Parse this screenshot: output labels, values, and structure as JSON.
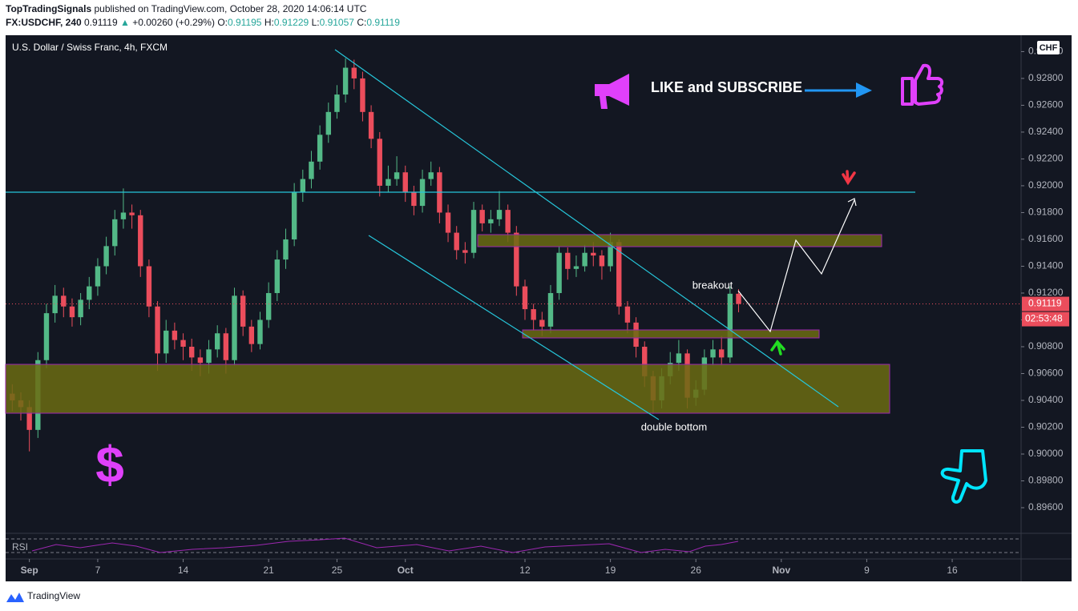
{
  "header": {
    "publisher": "TopTradingSignals",
    "published": "published on TradingView.com, October 28, 2020 14:06:14 UTC",
    "symbol": "FX:USDCHF, 240",
    "price": "0.91119",
    "change": "+0.00260 (+0.29%)",
    "ohlc": [
      {
        "label": "O:",
        "value": "0.91195"
      },
      {
        "label": "H:",
        "value": "0.91229"
      },
      {
        "label": "L:",
        "value": "0.91057"
      },
      {
        "label": "C:",
        "value": "0.91119"
      }
    ]
  },
  "chart_data": {
    "type": "candlestick",
    "title": "U.S. Dollar / Swiss Franc, 4h, FXCM",
    "currency": "CHF",
    "categories": [
      null,
      null,
      "Sep",
      null,
      null,
      null,
      null,
      null,
      null,
      null,
      "7",
      null,
      null,
      null,
      null,
      null,
      null,
      null,
      null,
      null,
      "14",
      null,
      null,
      null,
      null,
      null,
      null,
      null,
      null,
      null,
      "21",
      null,
      null,
      null,
      null,
      null,
      null,
      null,
      "25",
      null,
      null,
      null,
      null,
      null,
      null,
      null,
      "Oct",
      null,
      null,
      null,
      null,
      null,
      null,
      null,
      null,
      null,
      null,
      null,
      null,
      null,
      "12",
      null,
      null,
      null,
      null,
      null,
      null,
      null,
      null,
      null,
      "19",
      null,
      null,
      null,
      null,
      null,
      null,
      null,
      null,
      null,
      "26",
      null,
      null,
      null,
      null,
      null,
      null,
      null,
      null,
      null,
      "Nov",
      null,
      null,
      null,
      null,
      null,
      null,
      null,
      null,
      null,
      "9",
      null,
      null,
      null,
      null,
      null,
      null,
      null,
      null,
      null,
      "16",
      null,
      null,
      null,
      null,
      null,
      null,
      null
    ],
    "open": [
      0.9045,
      0.904,
      0.9035,
      0.9018,
      0.907,
      0.9105,
      0.9118,
      0.911,
      0.9102,
      0.9115,
      0.9125,
      0.914,
      0.9155,
      0.9175,
      0.918,
      0.9178,
      0.914,
      0.911,
      0.9075,
      0.9092,
      0.9085,
      0.908,
      0.9072,
      0.9068,
      0.9078,
      0.909,
      0.907,
      0.9118,
      0.9095,
      0.9082,
      0.91,
      0.912,
      0.9145,
      0.916,
      0.9195,
      0.9205,
      0.9218,
      0.9238,
      0.9255,
      0.9268,
      0.9288,
      0.928,
      0.9255,
      0.9235,
      0.92,
      0.9205,
      0.921,
      0.9195,
      0.9185,
      0.9205,
      0.921,
      0.918,
      0.9165,
      0.9152,
      0.915,
      0.9182,
      0.9172,
      0.9175,
      0.9182,
      0.9165,
      0.9125,
      0.9108,
      0.91,
      0.9095,
      0.912,
      0.915,
      0.9138,
      0.914,
      0.915,
      0.9148,
      0.914,
      0.9158,
      0.911,
      0.9098,
      0.908,
      0.9058,
      0.904,
      0.9058,
      0.9068,
      0.9075,
      0.9042,
      0.9048,
      0.9072,
      0.9078,
      0.9072,
      0.91195,
      null,
      null,
      null,
      null,
      null,
      null,
      null,
      null,
      null,
      null,
      null,
      null,
      null,
      null,
      null,
      null,
      null,
      null,
      null,
      null,
      null,
      null,
      null,
      null,
      null,
      null,
      null,
      null,
      null,
      null,
      null,
      null
    ],
    "high": [
      0.9052,
      0.9046,
      0.904,
      0.9076,
      0.9112,
      0.9126,
      0.9124,
      0.9116,
      0.912,
      0.9132,
      0.9146,
      0.9162,
      0.9182,
      0.9198,
      0.9186,
      0.9182,
      0.9145,
      0.9114,
      0.91,
      0.9098,
      0.909,
      0.9086,
      0.9078,
      0.9085,
      0.9096,
      0.9094,
      0.9124,
      0.9122,
      0.91,
      0.9106,
      0.9128,
      0.9152,
      0.9168,
      0.9202,
      0.9212,
      0.9226,
      0.9245,
      0.9262,
      0.9275,
      0.9295,
      0.9294,
      0.9285,
      0.926,
      0.924,
      0.9215,
      0.9222,
      0.9215,
      0.92,
      0.9212,
      0.9218,
      0.9214,
      0.9186,
      0.917,
      0.9158,
      0.9188,
      0.9186,
      0.9182,
      0.9196,
      0.9186,
      0.917,
      0.913,
      0.9112,
      0.9106,
      0.9126,
      0.9155,
      0.9154,
      0.9148,
      0.9156,
      0.9158,
      0.9152,
      0.9165,
      0.916,
      0.9114,
      0.9102,
      0.9084,
      0.9062,
      0.9064,
      0.9076,
      0.9085,
      0.9078,
      0.9055,
      0.9078,
      0.9085,
      0.9088,
      0.9125,
      0.91229,
      null,
      null,
      null,
      null,
      null,
      null,
      null,
      null,
      null,
      null,
      null,
      null,
      null,
      null,
      null,
      null,
      null,
      null,
      null,
      null,
      null,
      null,
      null,
      null,
      null,
      null,
      null,
      null,
      null,
      null,
      null,
      null
    ],
    "low": [
      0.9032,
      0.9025,
      0.9002,
      0.9012,
      0.9064,
      0.9098,
      0.9102,
      0.9095,
      0.9096,
      0.9108,
      0.9118,
      0.9134,
      0.9148,
      0.9168,
      0.9168,
      0.9132,
      0.9102,
      0.9062,
      0.9068,
      0.9078,
      0.907,
      0.9062,
      0.9058,
      0.906,
      0.9072,
      0.906,
      0.9066,
      0.9088,
      0.9076,
      0.9078,
      0.9094,
      0.9114,
      0.9138,
      0.9155,
      0.9188,
      0.9198,
      0.9212,
      0.9232,
      0.925,
      0.9262,
      0.9272,
      0.9248,
      0.9228,
      0.9192,
      0.9195,
      0.92,
      0.9188,
      0.9178,
      0.918,
      0.92,
      0.9172,
      0.9158,
      0.9145,
      0.9142,
      0.9146,
      0.9166,
      0.9165,
      0.917,
      0.9158,
      0.9118,
      0.91,
      0.9092,
      0.9088,
      0.909,
      0.9115,
      0.913,
      0.9132,
      0.9136,
      0.914,
      0.913,
      0.9136,
      0.9104,
      0.909,
      0.9072,
      0.905,
      0.903,
      0.9034,
      0.9052,
      0.9062,
      0.9034,
      0.9036,
      0.9044,
      0.9066,
      0.9066,
      0.9068,
      0.91057,
      null,
      null,
      null,
      null,
      null,
      null,
      null,
      null,
      null,
      null,
      null,
      null,
      null,
      null,
      null,
      null,
      null,
      null,
      null,
      null,
      null,
      null,
      null,
      null,
      null,
      null,
      null,
      null,
      null,
      null,
      null,
      null
    ],
    "close": [
      0.904,
      0.9035,
      0.9018,
      0.907,
      0.9105,
      0.9118,
      0.911,
      0.9102,
      0.9115,
      0.9125,
      0.914,
      0.9155,
      0.9175,
      0.918,
      0.9178,
      0.914,
      0.911,
      0.9075,
      0.9092,
      0.9085,
      0.908,
      0.9072,
      0.9068,
      0.9078,
      0.909,
      0.907,
      0.9118,
      0.9095,
      0.9082,
      0.91,
      0.912,
      0.9145,
      0.916,
      0.9195,
      0.9205,
      0.9218,
      0.9238,
      0.9255,
      0.9268,
      0.9288,
      0.928,
      0.9255,
      0.9235,
      0.92,
      0.9205,
      0.921,
      0.9195,
      0.9185,
      0.9205,
      0.921,
      0.918,
      0.9165,
      0.9152,
      0.915,
      0.9182,
      0.9172,
      0.9175,
      0.9182,
      0.9165,
      0.9125,
      0.9108,
      0.91,
      0.9095,
      0.912,
      0.915,
      0.9138,
      0.914,
      0.915,
      0.9148,
      0.914,
      0.9158,
      0.911,
      0.9098,
      0.908,
      0.9058,
      0.904,
      0.9058,
      0.9068,
      0.9075,
      0.9042,
      0.9048,
      0.9072,
      0.9078,
      0.9072,
      0.91195,
      0.91119,
      null,
      null,
      null,
      null,
      null,
      null,
      null,
      null,
      null,
      null,
      null,
      null,
      null,
      null,
      null,
      null,
      null,
      null,
      null,
      null,
      null,
      null,
      null,
      null,
      null,
      null,
      null,
      null,
      null,
      null,
      null,
      null
    ],
    "colors": {
      "up": "#53b987",
      "down": "#eb4d5c"
    },
    "ylim": [
      0.89415,
      0.93122
    ],
    "yticks": [
      {
        "value": 0.896,
        "label": "0.89600"
      },
      {
        "value": 0.898,
        "label": "0.89800"
      },
      {
        "value": 0.9,
        "label": "0.90000"
      },
      {
        "value": 0.902,
        "label": "0.90200"
      },
      {
        "value": 0.904,
        "label": "0.90400"
      },
      {
        "value": 0.906,
        "label": "0.90600"
      },
      {
        "value": 0.908,
        "label": "0.90800"
      },
      {
        "value": 0.91,
        "label": "0.91000"
      },
      {
        "value": 0.912,
        "label": "0.91200"
      },
      {
        "value": 0.914,
        "label": "0.91400"
      },
      {
        "value": 0.916,
        "label": "0.91600"
      },
      {
        "value": 0.918,
        "label": "0.91800"
      },
      {
        "value": 0.92,
        "label": "0.92000"
      },
      {
        "value": 0.922,
        "label": "0.92200"
      },
      {
        "value": 0.924,
        "label": "0.92400"
      },
      {
        "value": 0.926,
        "label": "0.92600"
      },
      {
        "value": 0.928,
        "label": "0.92800"
      },
      {
        "value": 0.93,
        "label": "0.93000"
      }
    ],
    "last_price": 0.91119,
    "countdown": "02:53:48",
    "annotations": [
      "breakout",
      "double bottom",
      "LIKE and SUBSCRIBE",
      "$"
    ],
    "indicator": "RSI"
  },
  "footer": {
    "brand": "TradingView"
  }
}
